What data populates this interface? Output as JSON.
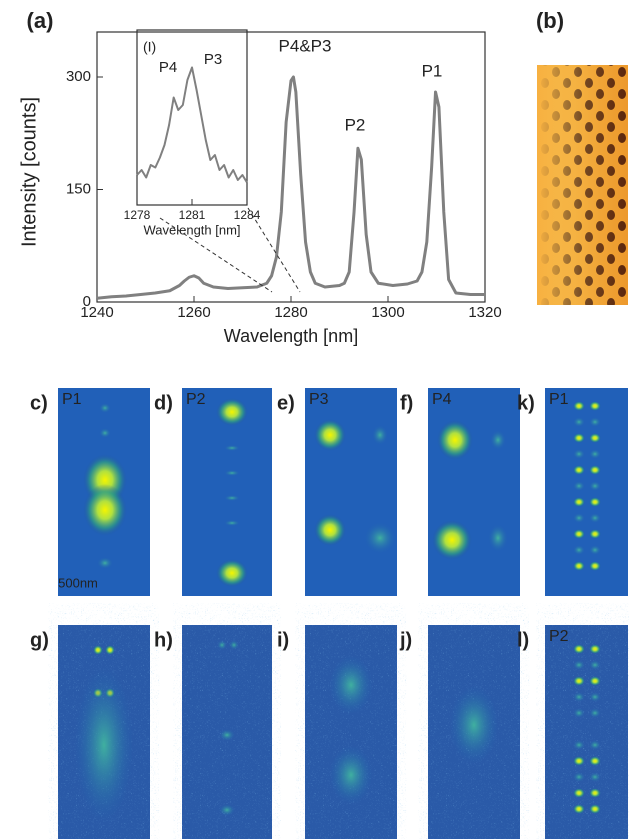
{
  "chart_data": [
    {
      "type": "line",
      "panel": "(a)",
      "xlabel": "Wavelength [nm]",
      "ylabel": "Intensity [counts]",
      "xlim": [
        1240,
        1320
      ],
      "xticks": [
        1240,
        1260,
        1280,
        1300,
        1320
      ],
      "ylim": [
        0,
        360
      ],
      "yticks": [
        0,
        150,
        300
      ],
      "annotations": [
        "P4&P3",
        "P2",
        "P1"
      ],
      "x": [
        1240,
        1243,
        1246,
        1249,
        1252,
        1255,
        1257,
        1258,
        1259,
        1260,
        1261,
        1262,
        1264,
        1267,
        1270,
        1273,
        1275,
        1276,
        1277,
        1278,
        1279,
        1280,
        1280.5,
        1281,
        1282,
        1283,
        1284,
        1285,
        1287,
        1290,
        1291,
        1292,
        1293,
        1293.8,
        1294.5,
        1295.5,
        1296.5,
        1298,
        1301,
        1304,
        1306,
        1307,
        1308,
        1309,
        1309.8,
        1310.5,
        1311.5,
        1312.5,
        1314,
        1317,
        1320
      ],
      "series": [
        {
          "color": "#808080",
          "values": [
            5,
            7,
            8,
            10,
            12,
            15,
            22,
            28,
            33,
            35,
            32,
            25,
            20,
            18,
            19,
            20,
            25,
            35,
            60,
            120,
            240,
            295,
            300,
            280,
            170,
            80,
            40,
            25,
            20,
            22,
            25,
            40,
            120,
            205,
            190,
            90,
            40,
            25,
            22,
            24,
            28,
            40,
            80,
            180,
            280,
            260,
            120,
            30,
            12,
            10,
            10
          ]
        }
      ]
    },
    {
      "type": "line",
      "panel": "(I)",
      "xlabel": "Wavelength [nm]",
      "xlim": [
        1278,
        1284
      ],
      "xticks": [
        1278,
        1281,
        1284
      ],
      "ylim": [
        0,
        350
      ],
      "annotations": [
        "P4",
        "P3"
      ],
      "x": [
        1278,
        1278.25,
        1278.5,
        1278.75,
        1279,
        1279.25,
        1279.5,
        1279.75,
        1280,
        1280.25,
        1280.5,
        1280.75,
        1281,
        1281.25,
        1281.5,
        1281.75,
        1282,
        1282.25,
        1282.5,
        1282.75,
        1283,
        1283.25,
        1283.5,
        1283.75,
        1284
      ],
      "series": [
        {
          "color": "#808080",
          "values": [
            60,
            70,
            55,
            80,
            75,
            95,
            120,
            160,
            215,
            190,
            200,
            250,
            275,
            230,
            180,
            130,
            90,
            100,
            70,
            80,
            55,
            70,
            50,
            60,
            45
          ]
        }
      ]
    }
  ],
  "panel_b": "(b)",
  "panels": [
    {
      "label": "c)",
      "title": "P1"
    },
    {
      "label": "d)",
      "title": "P2"
    },
    {
      "label": "e)",
      "title": "P3"
    },
    {
      "label": "f)",
      "title": "P4"
    },
    {
      "label": "k)",
      "title": "P1"
    },
    {
      "label": "g)"
    },
    {
      "label": "h)"
    },
    {
      "label": "i)"
    },
    {
      "label": "j)"
    },
    {
      "label": "l)",
      "title": "P2"
    }
  ],
  "scale_bar": "500nm"
}
